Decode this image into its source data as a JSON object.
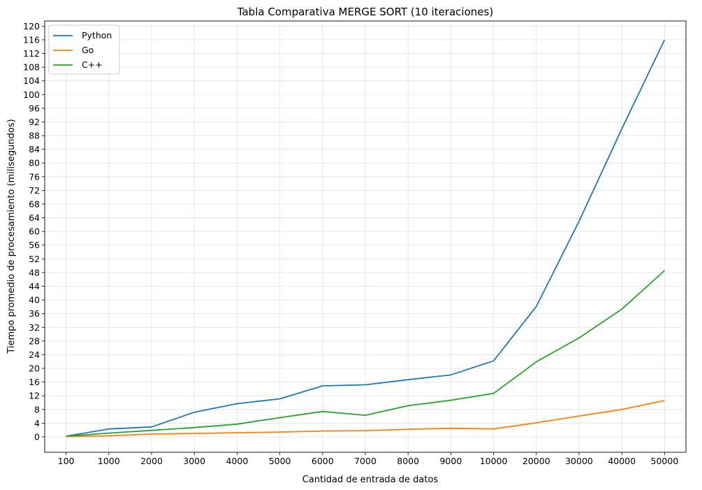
{
  "chart_data": {
    "type": "line",
    "title": "Tabla Comparativa MERGE SORT (10 iteraciones)",
    "xlabel": "Cantidad de entrada de datos",
    "ylabel": "Tiempo promedio de procesamiento (milisegundos)",
    "categories": [
      "100",
      "1000",
      "2000",
      "3000",
      "4000",
      "5000",
      "6000",
      "7000",
      "8000",
      "9000",
      "10000",
      "20000",
      "30000",
      "40000",
      "50000"
    ],
    "ylim": [
      -4.5,
      121.5
    ],
    "yticks": [
      0,
      4,
      8,
      12,
      16,
      20,
      24,
      28,
      32,
      36,
      40,
      44,
      48,
      52,
      56,
      60,
      64,
      68,
      72,
      76,
      80,
      84,
      88,
      92,
      96,
      100,
      104,
      108,
      112,
      116,
      120
    ],
    "grid": true,
    "legend_position": "top-left",
    "series": [
      {
        "name": "Python",
        "color": "#1f77b4",
        "values": [
          0.2,
          2.3,
          2.9,
          7.2,
          9.7,
          11.1,
          14.9,
          15.2,
          16.7,
          18.1,
          22.2,
          38.1,
          63.0,
          90.0,
          116.0
        ]
      },
      {
        "name": "Go",
        "color": "#ff7f0e",
        "values": [
          0.1,
          0.3,
          0.8,
          1.0,
          1.2,
          1.4,
          1.7,
          1.8,
          2.2,
          2.5,
          2.3,
          4.1,
          6.1,
          8.0,
          10.6
        ]
      },
      {
        "name": "C++",
        "color": "#2ca02c",
        "values": [
          0.2,
          1.1,
          1.9,
          2.7,
          3.7,
          5.6,
          7.4,
          6.3,
          9.1,
          10.7,
          12.7,
          21.9,
          28.9,
          37.3,
          48.6
        ]
      }
    ]
  }
}
